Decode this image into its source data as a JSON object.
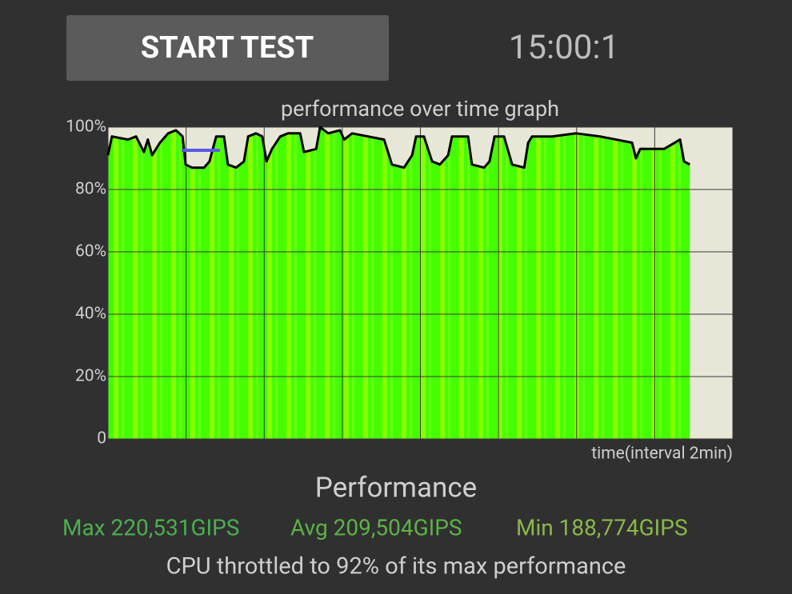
{
  "button": {
    "label": "START TEST"
  },
  "timer": "15:00:1",
  "chart_data": {
    "type": "line",
    "title": "performance over time graph",
    "x_label": "time(interval 2min)",
    "x": [
      0,
      0.1,
      0.51,
      0.72,
      0.92,
      1.02,
      1.13,
      1.33,
      1.54,
      1.74,
      1.91,
      1.99,
      2.15,
      2.46,
      2.6,
      2.77,
      2.97,
      3.07,
      3.28,
      3.48,
      3.59,
      3.79,
      3.95,
      4.06,
      4.2,
      4.41,
      4.61,
      4.92,
      5.02,
      5.33,
      5.43,
      5.64,
      5.94,
      6.05,
      6.25,
      6.66,
      7.07,
      7.27,
      7.58,
      7.79,
      7.89,
      8.09,
      8.3,
      8.5,
      8.71,
      8.81,
      9.22,
      9.32,
      9.63,
      9.77,
      9.9,
      10.14,
      10.35,
      10.66,
      10.76,
      10.86,
      11.37,
      11.99,
      12.6,
      13.42,
      13.52,
      13.63,
      14.04,
      14.24,
      14.65,
      14.75,
      14.9
    ],
    "values": [
      91,
      97,
      96,
      97,
      92,
      96,
      91,
      95,
      98,
      99,
      97,
      88,
      87,
      87,
      89,
      97,
      97,
      88,
      87,
      89,
      97,
      98,
      97,
      89,
      93,
      97,
      98,
      98,
      92,
      93,
      100,
      98,
      99,
      96,
      98,
      97,
      96,
      88,
      87,
      91,
      97,
      97,
      89,
      88,
      91,
      97,
      97,
      88,
      87,
      89,
      97,
      97,
      88,
      87,
      95,
      97,
      97,
      98,
      97,
      95,
      90,
      93,
      93,
      93,
      96,
      89,
      88
    ],
    "color": "#000000",
    "fill_color": "#44ff00",
    "xlim": [
      0,
      16
    ],
    "xticks": [
      0,
      2,
      4,
      6,
      8,
      10,
      12,
      14,
      16
    ],
    "ylim": [
      0,
      100
    ],
    "yticks": [
      0,
      {
        "value": 20,
        "label": "20%"
      },
      {
        "value": 40,
        "label": "40%"
      },
      {
        "value": 60,
        "label": "60%"
      },
      {
        "value": 80,
        "label": "80%"
      },
      {
        "value": 100,
        "label": "100%"
      }
    ],
    "grid": true
  },
  "stats": {
    "heading": "Performance",
    "max": "Max 220,531GIPS",
    "avg": "Avg 209,504GIPS",
    "min": "Min 188,774GIPS",
    "summary": "CPU throttled to 92% of its max performance"
  }
}
